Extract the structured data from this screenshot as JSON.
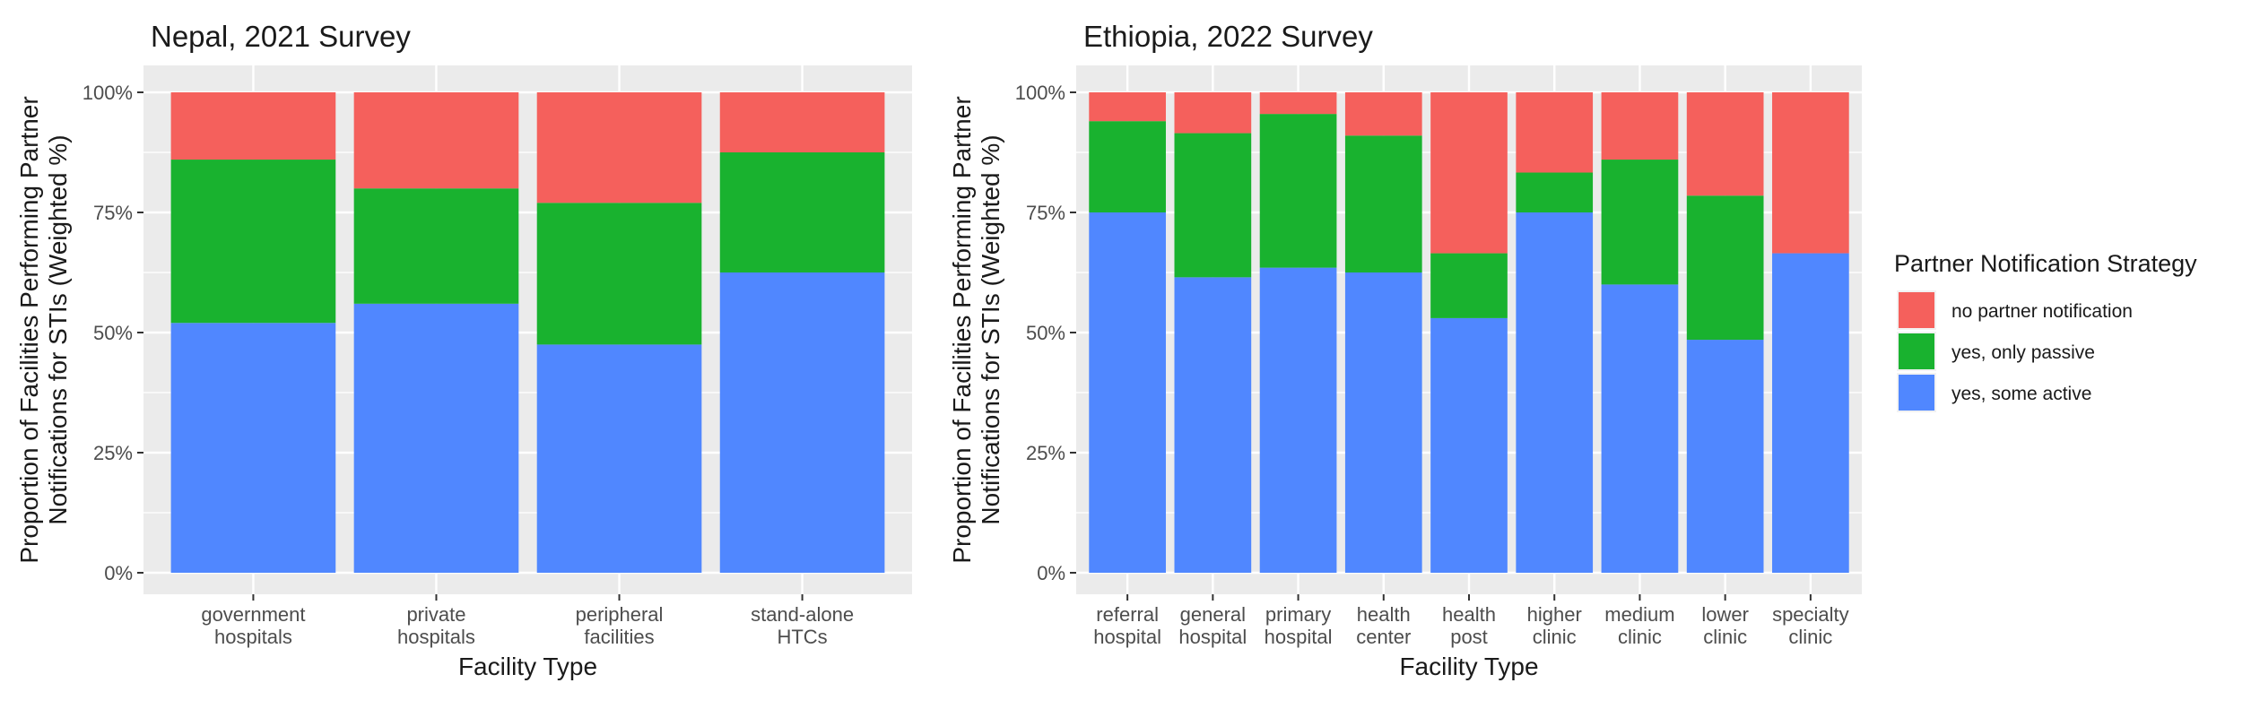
{
  "chart_data": [
    {
      "type": "bar",
      "stacked": true,
      "title": "Nepal, 2021 Survey",
      "xlabel": "Facility Type",
      "ylabel": [
        "Proportion of Facilities Performing Partner",
        "Notifications for STIs (Weighted %)"
      ],
      "ylim": [
        0,
        1
      ],
      "yticks": [
        "0%",
        "25%",
        "50%",
        "75%",
        "100%"
      ],
      "categories": [
        [
          "government",
          "hospitals"
        ],
        [
          "private",
          "hospitals"
        ],
        [
          "peripheral",
          "facilities"
        ],
        [
          "stand-alone",
          "HTCs"
        ]
      ],
      "series": [
        {
          "name": "yes, some active",
          "color": "#5087ff",
          "values": [
            0.52,
            0.56,
            0.475,
            0.625
          ]
        },
        {
          "name": "yes, only passive",
          "color": "#19b22f",
          "values": [
            0.34,
            0.24,
            0.295,
            0.25
          ]
        },
        {
          "name": "no partner notification",
          "color": "#f5605c",
          "values": [
            0.14,
            0.2,
            0.23,
            0.125
          ]
        }
      ],
      "grid": true
    },
    {
      "type": "bar",
      "stacked": true,
      "title": "Ethiopia, 2022 Survey",
      "xlabel": "Facility Type",
      "ylabel": [
        "Proportion of Facilities Performing Partner",
        "Notifications for STIs (Weighted %)"
      ],
      "ylim": [
        0,
        1
      ],
      "yticks": [
        "0%",
        "25%",
        "50%",
        "75%",
        "100%"
      ],
      "categories": [
        [
          "referral",
          "hospital"
        ],
        [
          "general",
          "hospital"
        ],
        [
          "primary",
          "hospital"
        ],
        [
          "health",
          "center"
        ],
        [
          "health",
          "post"
        ],
        [
          "higher",
          "clinic"
        ],
        [
          "medium",
          "clinic"
        ],
        [
          "lower",
          "clinic"
        ],
        [
          "specialty",
          "clinic"
        ]
      ],
      "series": [
        {
          "name": "yes, some active",
          "color": "#5087ff",
          "values": [
            0.75,
            0.615,
            0.635,
            0.625,
            0.53,
            0.75,
            0.6,
            0.485,
            0.665
          ]
        },
        {
          "name": "yes, only passive",
          "color": "#19b22f",
          "values": [
            0.19,
            0.3,
            0.32,
            0.285,
            0.135,
            0.083,
            0.26,
            0.3,
            0.0
          ]
        },
        {
          "name": "no partner notification",
          "color": "#f5605c",
          "values": [
            0.06,
            0.085,
            0.045,
            0.09,
            0.335,
            0.167,
            0.14,
            0.215,
            0.335
          ]
        }
      ],
      "grid": true
    }
  ],
  "legend": {
    "title": "Partner Notification Strategy",
    "placement": "right",
    "items": [
      {
        "label": "no partner notification",
        "color": "#f5605c"
      },
      {
        "label": "yes, only passive",
        "color": "#19b22f"
      },
      {
        "label": "yes, some active",
        "color": "#5087ff"
      }
    ]
  }
}
